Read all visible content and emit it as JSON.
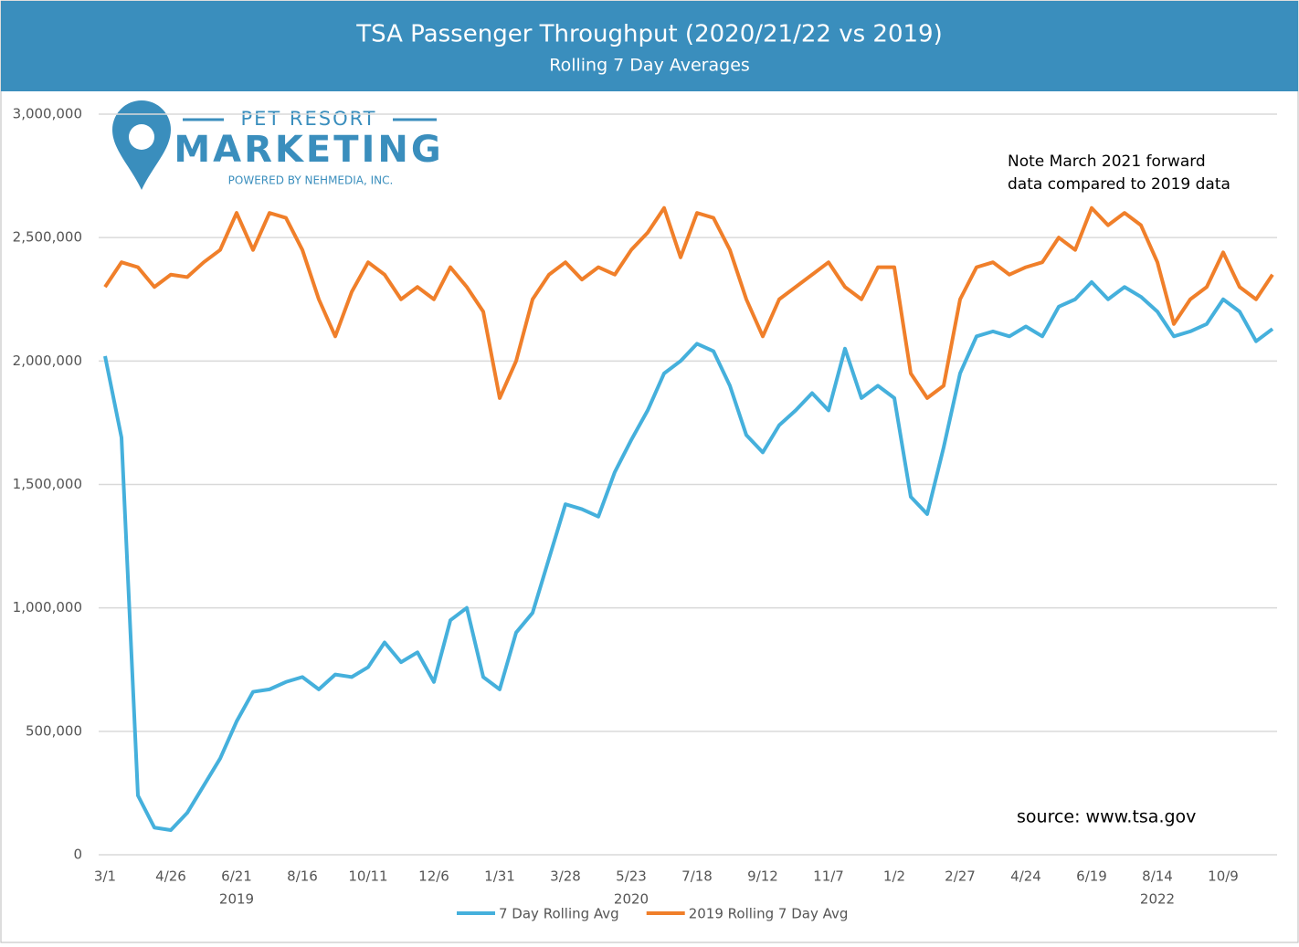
{
  "chart_data": {
    "type": "line",
    "title": "TSA Passenger Throughput  (2020/21/22 vs 2019)",
    "subtitle": "Rolling 7 Day Averages",
    "logo": {
      "top": "PET RESORT",
      "main": "MARKETING",
      "bottom": "POWERED BY NEHMEDIA, INC."
    },
    "annotations": [
      "Note March 2021 forward",
      "data compared to 2019 data",
      "source: www.tsa.gov"
    ],
    "categories": [
      "3/1",
      null,
      null,
      null,
      "4/26",
      null,
      null,
      null,
      "6/21",
      null,
      null,
      null,
      "8/16",
      null,
      null,
      null,
      "10/11",
      null,
      null,
      null,
      "12/6",
      null,
      null,
      null,
      "1/31",
      null,
      null,
      null,
      "3/28",
      null,
      null,
      null,
      "5/23",
      null,
      null,
      null,
      "7/18",
      null,
      null,
      null,
      "9/12",
      null,
      null,
      null,
      "11/7",
      null,
      null,
      null,
      "1/2",
      null,
      null,
      null,
      "2/27",
      null,
      null,
      null,
      "4/24",
      null,
      null,
      null,
      "6/19",
      null,
      null,
      null,
      "8/14",
      null,
      null,
      null,
      "10/9",
      null,
      null,
      null
    ],
    "year_labels": [
      {
        "label": "2019",
        "under": "6/21"
      },
      {
        "label": "2020",
        "under": "5/23"
      },
      {
        "label": "2022",
        "under": "8/14"
      }
    ],
    "ylim": [
      0,
      3000000
    ],
    "yticks": [
      0,
      {
        "value": 500000,
        "label": "500,000"
      },
      {
        "value": 1000000,
        "label": "1,000,000"
      },
      {
        "value": 1500000,
        "label": "1,500,000"
      },
      {
        "value": 2000000,
        "label": "2,000,000"
      },
      {
        "value": 2500000,
        "label": "2,500,000"
      },
      {
        "value": 3000000,
        "label": "3,000,000"
      }
    ],
    "grid": true,
    "legend": "bottom",
    "series": [
      {
        "name": "7 Day Rolling Avg",
        "color": "#45b0dc",
        "values": [
          2020000,
          1690000,
          240000,
          110000,
          100000,
          170000,
          280000,
          390000,
          540000,
          660000,
          670000,
          700000,
          720000,
          670000,
          730000,
          720000,
          760000,
          860000,
          780000,
          820000,
          700000,
          950000,
          1000000,
          720000,
          670000,
          900000,
          980000,
          1200000,
          1420000,
          1400000,
          1370000,
          1550000,
          1680000,
          1800000,
          1950000,
          2000000,
          2070000,
          2040000,
          1900000,
          1700000,
          1630000,
          1740000,
          1800000,
          1870000,
          1800000,
          2050000,
          1850000,
          1900000,
          1850000,
          1450000,
          1380000,
          1650000,
          1950000,
          2100000,
          2120000,
          2100000,
          2140000,
          2100000,
          2220000,
          2250000,
          2320000,
          2250000,
          2300000,
          2260000,
          2200000,
          2100000,
          2120000,
          2150000,
          2250000,
          2200000,
          2080000,
          2130000
        ]
      },
      {
        "name": "2019 Rolling 7 Day Avg",
        "color": "#f07f2a",
        "values": [
          2300000,
          2400000,
          2380000,
          2300000,
          2350000,
          2340000,
          2400000,
          2450000,
          2600000,
          2450000,
          2600000,
          2580000,
          2450000,
          2250000,
          2100000,
          2280000,
          2400000,
          2350000,
          2250000,
          2300000,
          2250000,
          2380000,
          2300000,
          2200000,
          1850000,
          2000000,
          2250000,
          2350000,
          2400000,
          2330000,
          2380000,
          2350000,
          2450000,
          2520000,
          2620000,
          2420000,
          2600000,
          2580000,
          2450000,
          2250000,
          2100000,
          2250000,
          2300000,
          2350000,
          2400000,
          2300000,
          2250000,
          2380000,
          2380000,
          1950000,
          1850000,
          1900000,
          2250000,
          2380000,
          2400000,
          2350000,
          2380000,
          2400000,
          2500000,
          2450000,
          2620000,
          2550000,
          2600000,
          2550000,
          2400000,
          2150000,
          2250000,
          2300000,
          2440000,
          2300000,
          2250000,
          2350000
        ]
      }
    ]
  }
}
